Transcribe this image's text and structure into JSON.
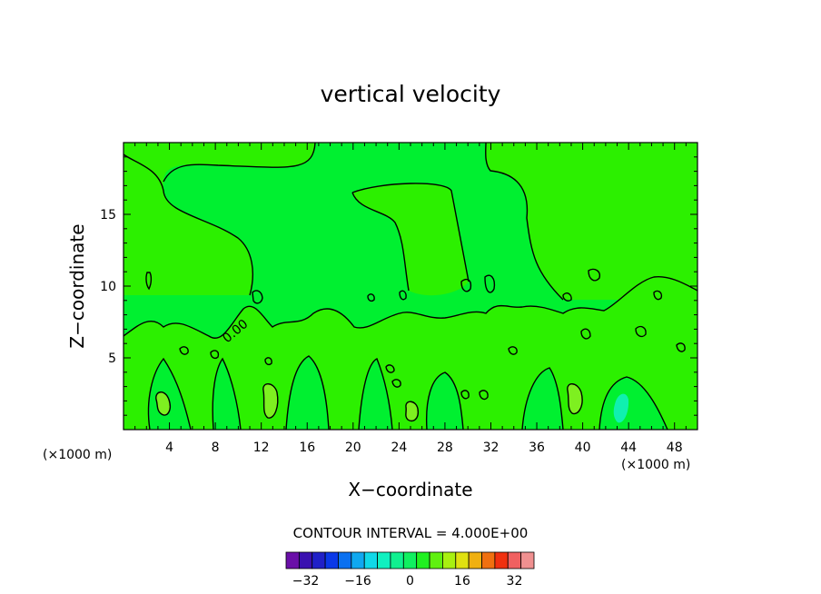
{
  "chart_data": {
    "type": "contour",
    "title": "vertical velocity",
    "xlabel": "X−coordinate",
    "ylabel": "Z−coordinate",
    "x_unit": "(×1000 m)",
    "x_unit_right": "(×1000 m)",
    "xlim": [
      0,
      50
    ],
    "ylim": [
      0,
      20
    ],
    "x_ticks": [
      4,
      8,
      12,
      16,
      20,
      24,
      28,
      32,
      36,
      40,
      44,
      48
    ],
    "y_ticks": [
      5,
      10,
      15
    ],
    "contour_interval_label": "CONTOUR INTERVAL = 4.000E+00",
    "contour_label": "0.00",
    "colorbar": {
      "levels": [
        -36,
        -32,
        -28,
        -24,
        -20,
        -16,
        -12,
        -8,
        -4,
        0,
        4,
        8,
        12,
        16,
        20,
        24,
        28,
        32,
        36
      ],
      "colors": [
        "#6a0fa8",
        "#3a10b0",
        "#2020c8",
        "#0a38e8",
        "#0a70f0",
        "#10a8f0",
        "#10d8e8",
        "#10f0c0",
        "#10f090",
        "#10f060",
        "#20f020",
        "#60f010",
        "#a8f010",
        "#e0e010",
        "#f0b010",
        "#f07010",
        "#f03010",
        "#f06060",
        "#f09090"
      ],
      "tick_labels": [
        "−32",
        "−16",
        "0",
        "16",
        "32"
      ],
      "tick_values": [
        -32,
        -16,
        0,
        16,
        32
      ]
    },
    "field_colors": {
      "background": "#00f030",
      "positive_region": "#2cf000",
      "updraft_core": "#7ef020",
      "downdraft_core": "#10f0b0"
    }
  }
}
